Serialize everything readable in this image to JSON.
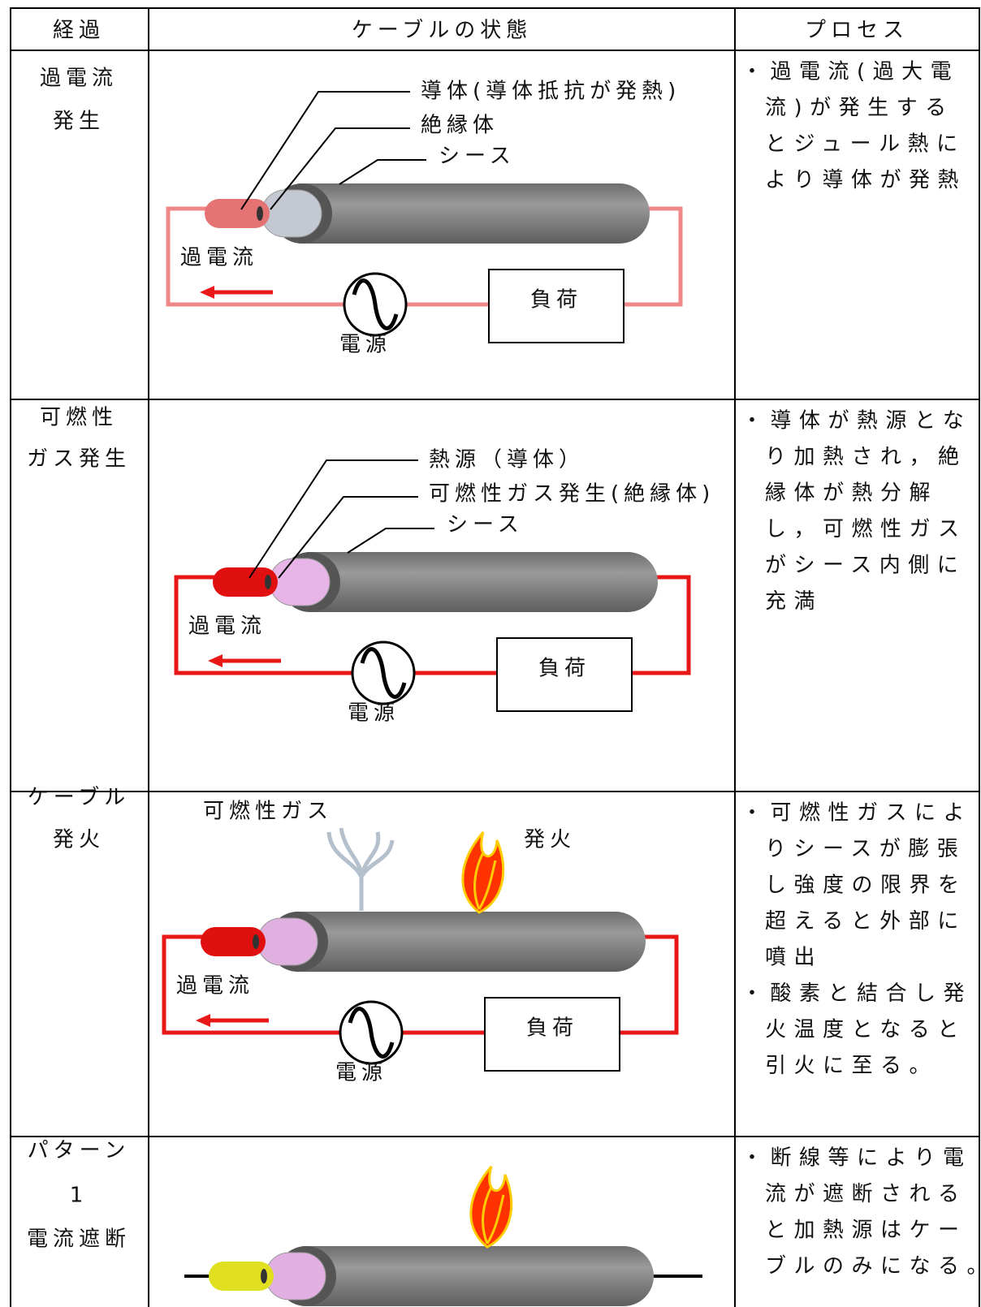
{
  "header": [
    "経過",
    "ケーブルの状態",
    "プロセス"
  ],
  "rows": [
    {
      "stage": [
        "過電流",
        "発生"
      ],
      "diagram": {
        "conductor": "導体(導体抵抗が発熱)",
        "insulator": "絶縁体",
        "sheath": "シース",
        "current": "過電流",
        "load": "負荷",
        "source": "電源"
      },
      "process": [
        "・過電流(過大電",
        "流)が発生する",
        "とジュール熱に",
        "より導体が発熱"
      ]
    },
    {
      "stage": [
        "可燃性",
        "ガス発生"
      ],
      "diagram": {
        "conductor": "熱源（導体）",
        "insulator": "可燃性ガス発生(絶縁体)",
        "sheath": "シース",
        "current": "過電流",
        "load": "負荷",
        "source": "電源"
      },
      "process": [
        "・導体が熱源とな",
        "り加熱され，絶",
        "縁体が熱分解",
        "し，可燃性ガス",
        "がシース内側に",
        "充満"
      ]
    },
    {
      "stage": [
        "ケーブル",
        "発火"
      ],
      "diagram": {
        "gas": "可燃性ガス",
        "fire": "発火",
        "current": "過電流",
        "load": "負荷",
        "source": "電源"
      },
      "process": [
        "・可燃性ガスによ",
        "りシースが膨張",
        "し強度の限界を",
        "超えると外部に",
        "噴出",
        "・酸素と結合し発",
        "火温度となると",
        "引火に至る。"
      ]
    },
    {
      "stage": [
        "パターン",
        "1",
        "電流遮断"
      ],
      "process": [
        "・断線等により電",
        "流が遮断される",
        "と加熱源はケー",
        "ブルのみになる。"
      ]
    }
  ]
}
